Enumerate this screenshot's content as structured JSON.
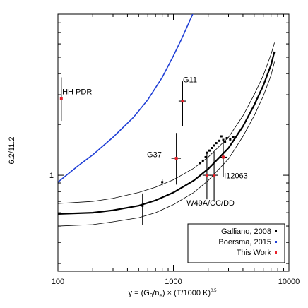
{
  "chart_data": {
    "type": "scatter",
    "title": "",
    "xlabel": "γ = (G₀/nₑ) × (T/1000 K)⁰·⁵",
    "xlabel_parts": {
      "main": "γ = (G",
      "sub0": "0",
      "mid": "/n",
      "sub1": "e",
      "tail": ") × (T/1000 K)",
      "sup": "0.5"
    },
    "ylabel": "6.2/11.2",
    "x_scale": "log",
    "y_scale": "log",
    "xlim": [
      100,
      10000
    ],
    "ylim": [
      0.27,
      9.0
    ],
    "x_ticks": [
      100,
      1000,
      10000
    ],
    "x_tick_labels": [
      "100",
      "1000",
      "10000"
    ],
    "y_ticks": [
      1
    ],
    "y_tick_labels": [
      "1"
    ],
    "grid": false,
    "legend_position": "bottom-right",
    "legend": [
      {
        "label": "Galliano, 2008",
        "color": "#000000"
      },
      {
        "label": "Boersma, 2015",
        "color": "#1f3fd6"
      },
      {
        "label": "This Work",
        "color": "#e8202a"
      }
    ],
    "series": [
      {
        "name": "Galliano, 2008",
        "color": "#000000",
        "points": [
          {
            "x": 540,
            "y": 0.66,
            "ylo": 0.51,
            "yhi": 0.78
          },
          {
            "x": 800,
            "y": 0.91,
            "ylo": 0.87,
            "yhi": 0.95
          },
          {
            "x": 1700,
            "y": 1.18
          },
          {
            "x": 1800,
            "y": 1.22
          },
          {
            "x": 1900,
            "y": 1.28
          },
          {
            "x": 1950,
            "y": 1.36
          },
          {
            "x": 2050,
            "y": 1.4
          },
          {
            "x": 2150,
            "y": 1.45
          },
          {
            "x": 2250,
            "y": 1.5
          },
          {
            "x": 2350,
            "y": 1.55
          },
          {
            "x": 2500,
            "y": 1.6
          },
          {
            "x": 2600,
            "y": 1.7
          },
          {
            "x": 2700,
            "y": 1.62
          },
          {
            "x": 2800,
            "y": 1.58
          },
          {
            "x": 2900,
            "y": 1.66
          },
          {
            "x": 3100,
            "y": 1.63
          },
          {
            "x": 3300,
            "y": 1.69
          }
        ]
      },
      {
        "name": "This Work",
        "color": "#e8202a",
        "points": [
          {
            "label": "HH PDR",
            "x": 107,
            "y": 2.85,
            "ylo": 2.1,
            "yhi": 3.8
          },
          {
            "label": "G11",
            "x": 1200,
            "y": 2.75,
            "ylo": 1.95,
            "yhi": 3.6,
            "xlo": 1110,
            "xhi": 1290
          },
          {
            "label": "G37",
            "x": 1060,
            "y": 1.26,
            "ylo": 0.88,
            "yhi": 1.78,
            "xlo": 960,
            "xhi": 1160
          },
          {
            "label": "W49A/CC/DD",
            "x": 1950,
            "y": 1.0,
            "ylo": 0.72,
            "yhi": 1.35,
            "xlo": 1790,
            "xhi": 2110
          },
          {
            "label": "W49A/CC/DD",
            "x": 2250,
            "y": 1.0,
            "ylo": 0.7,
            "yhi": 1.38,
            "xlo": 2070,
            "xhi": 2430
          },
          {
            "label": "I12063",
            "x": 2700,
            "y": 1.28,
            "ylo": 0.98,
            "yhi": 1.6,
            "xlo": 2480,
            "xhi": 2920
          }
        ]
      },
      {
        "name": "Boersma, 2015",
        "color": "#1f3fd6",
        "type": "line",
        "x": [
          100,
          150,
          200,
          300,
          450,
          600,
          800,
          1000,
          1200,
          1500
        ],
        "y": [
          0.91,
          1.14,
          1.32,
          1.68,
          2.2,
          2.8,
          3.8,
          5.1,
          6.6,
          9.3
        ]
      },
      {
        "name": "",
        "color": "#000000",
        "type": "line",
        "style": "thick",
        "x": [
          100,
          200,
          300,
          500,
          700,
          1000,
          1500,
          2000,
          3000,
          4000,
          5000,
          6000,
          7000,
          7500
        ],
        "y": [
          0.59,
          0.6,
          0.62,
          0.66,
          0.71,
          0.79,
          0.93,
          1.09,
          1.45,
          1.95,
          2.6,
          3.4,
          4.5,
          5.4
        ]
      },
      {
        "name": "",
        "color": "#000000",
        "type": "line",
        "style": "thin",
        "x": [
          100,
          200,
          300,
          500,
          700,
          1000,
          1500,
          2000,
          3000,
          4000,
          5000,
          6000,
          7000,
          7500
        ],
        "y": [
          0.68,
          0.7,
          0.73,
          0.79,
          0.85,
          0.94,
          1.1,
          1.28,
          1.68,
          2.25,
          3.0,
          3.9,
          5.2,
          6.1
        ]
      },
      {
        "name": "",
        "color": "#000000",
        "type": "line",
        "style": "thin",
        "x": [
          100,
          200,
          300,
          500,
          700,
          1000,
          1500,
          2000,
          3000,
          4000,
          5000,
          6000,
          7000,
          7500
        ],
        "y": [
          0.5,
          0.51,
          0.53,
          0.56,
          0.6,
          0.67,
          0.79,
          0.93,
          1.25,
          1.7,
          2.25,
          2.95,
          3.9,
          4.7
        ]
      }
    ],
    "annotations": [
      {
        "text": "HH PDR",
        "x": 109,
        "y": 3.02
      },
      {
        "text": "G11",
        "x": 1210,
        "y": 3.55
      },
      {
        "text": "G37",
        "x": 590,
        "y": 1.28
      },
      {
        "text": "I12063",
        "x": 2740,
        "y": 0.96
      },
      {
        "text": "W49A/CC/DD",
        "x": 1300,
        "y": 0.66
      }
    ]
  }
}
